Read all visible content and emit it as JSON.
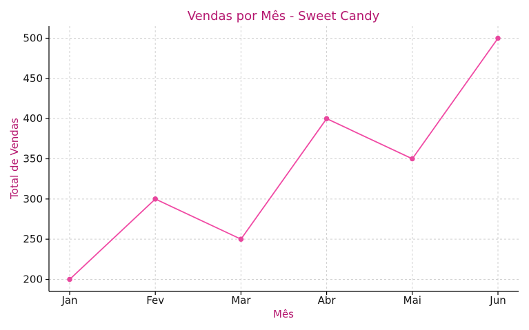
{
  "chart_data": {
    "type": "line",
    "title": "Vendas por Mês - Sweet Candy",
    "xlabel": "Mês",
    "ylabel": "Total de Vendas",
    "categories": [
      "Jan",
      "Fev",
      "Mar",
      "Abr",
      "Mai",
      "Jun"
    ],
    "series": [
      {
        "values": [
          200,
          300,
          250,
          400,
          350,
          500
        ]
      }
    ],
    "yticks": [
      200,
      250,
      300,
      350,
      400,
      450,
      500
    ],
    "ylim": [
      185,
      515
    ],
    "grid": true,
    "markers": true,
    "colors": {
      "line": "#f04aa4",
      "marker": "#e8479e",
      "title": "#b5176f",
      "labels": "#b5176f"
    }
  }
}
